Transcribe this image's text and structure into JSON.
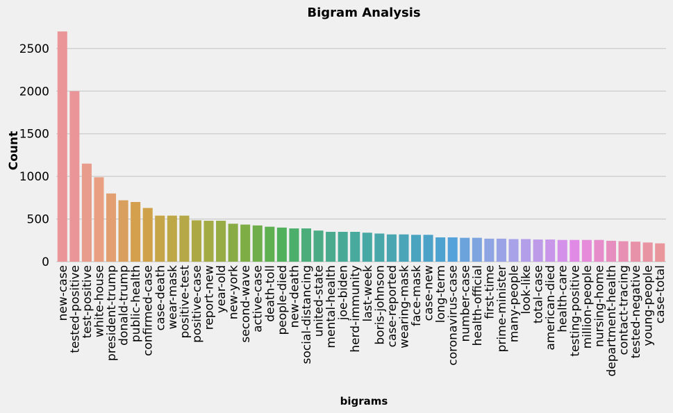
{
  "chart_data": {
    "type": "bar",
    "title": "Bigram Analysis",
    "xlabel": "bigrams",
    "ylabel": "Count",
    "ylim": [
      0,
      2800
    ],
    "yticks": [
      0,
      500,
      1000,
      1500,
      2000,
      2500
    ],
    "grid": true,
    "legend": "none",
    "categories": [
      "new-case",
      "tested-positive",
      "test-positive",
      "white-house",
      "president-trump",
      "donald-trump",
      "public-health",
      "confirmed-case",
      "case-death",
      "wear-mask",
      "positive-test",
      "positive-case",
      "report-new",
      "year-old",
      "new-york",
      "second-wave",
      "active-case",
      "death-toll",
      "people-died",
      "new-death",
      "social-distancing",
      "united-state",
      "mental-health",
      "joe-biden",
      "herd-immunity",
      "last-week",
      "boris-johnson",
      "case-reported",
      "wearing-mask",
      "face-mask",
      "case-new",
      "long-term",
      "coronavirus-case",
      "number-case",
      "health-official",
      "first-time",
      "prime-minister",
      "many-people",
      "look-like",
      "total-case",
      "american-died",
      "health-care",
      "testing-positive",
      "million-people",
      "nursing-home",
      "department-health",
      "contact-tracing",
      "tested-negative",
      "young-people",
      "case-total"
    ],
    "values": [
      2700,
      2000,
      1150,
      990,
      800,
      720,
      700,
      630,
      540,
      540,
      540,
      485,
      480,
      480,
      445,
      435,
      425,
      410,
      400,
      390,
      390,
      365,
      350,
      350,
      350,
      340,
      330,
      320,
      320,
      315,
      315,
      285,
      285,
      280,
      280,
      270,
      270,
      265,
      265,
      260,
      260,
      255,
      255,
      255,
      255,
      245,
      240,
      235,
      225,
      215
    ],
    "colors": [
      "#ea9699",
      "#ea9699",
      "#e89c8c",
      "#e89f82",
      "#e29f72",
      "#d99f5e",
      "#d4a04d",
      "#cfa24a",
      "#c5a548",
      "#bea746",
      "#b6a846",
      "#aca945",
      "#a3ab45",
      "#98ac45",
      "#89ab45",
      "#7fad45",
      "#6fae4a",
      "#5fb050",
      "#50b05b",
      "#4cae6b",
      "#4bad79",
      "#4aab84",
      "#49aa8d",
      "#48a996",
      "#48a99d",
      "#48a8a3",
      "#49a7aa",
      "#4aa6b1",
      "#4ba5b8",
      "#4ba4bf",
      "#4ca3c7",
      "#4da2d0",
      "#55a2da",
      "#6ba3dd",
      "#7ea4e0",
      "#8fa4e3",
      "#9aa3e6",
      "#a8a2e8",
      "#b39fe9",
      "#bd9be9",
      "#c897ea",
      "#d491e9",
      "#e08ae6",
      "#e58bd9",
      "#e68ccb",
      "#e68ebf",
      "#e790b4",
      "#e892aa",
      "#e994a2",
      "#e9959c"
    ]
  }
}
